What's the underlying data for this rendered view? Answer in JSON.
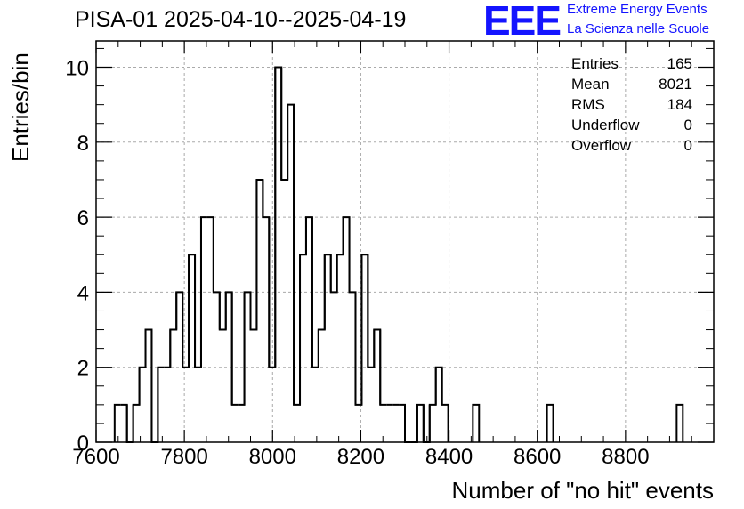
{
  "title": "PISA-01 2025-04-10--2025-04-19",
  "logo": {
    "mark": "EEE",
    "line1": "Extreme Energy Events",
    "line2": "La Scienza nelle Scuole",
    "color": "#1414ff"
  },
  "stats_box": [
    {
      "label": "Entries",
      "value": "165"
    },
    {
      "label": "Mean",
      "value": "8021"
    },
    {
      "label": "RMS",
      "value": "184"
    },
    {
      "label": "Underflow",
      "value": "0"
    },
    {
      "label": "Overflow",
      "value": "0"
    }
  ],
  "chart_data": {
    "type": "bar",
    "title": "PISA-01 2025-04-10--2025-04-19",
    "xlabel": "Number of \"no hit\" events",
    "ylabel": "Entries/bin",
    "xlim": [
      7600,
      9000
    ],
    "ylim": [
      0,
      10.7
    ],
    "grid": true,
    "bin_width": 14,
    "xticks": [
      "7600",
      "7800",
      "8000",
      "8200",
      "8400",
      "8600",
      "8800"
    ],
    "yticks": [
      "0",
      "2",
      "4",
      "6",
      "8",
      "10"
    ],
    "bins": [
      {
        "x": 7642,
        "y": 1
      },
      {
        "x": 7656,
        "y": 1
      },
      {
        "x": 7670,
        "y": 0
      },
      {
        "x": 7684,
        "y": 1
      },
      {
        "x": 7698,
        "y": 2
      },
      {
        "x": 7712,
        "y": 3
      },
      {
        "x": 7726,
        "y": 0
      },
      {
        "x": 7740,
        "y": 2
      },
      {
        "x": 7754,
        "y": 2
      },
      {
        "x": 7768,
        "y": 3
      },
      {
        "x": 7782,
        "y": 4
      },
      {
        "x": 7796,
        "y": 2
      },
      {
        "x": 7810,
        "y": 5
      },
      {
        "x": 7824,
        "y": 2
      },
      {
        "x": 7838,
        "y": 6
      },
      {
        "x": 7852,
        "y": 6
      },
      {
        "x": 7866,
        "y": 4
      },
      {
        "x": 7880,
        "y": 3
      },
      {
        "x": 7894,
        "y": 4
      },
      {
        "x": 7908,
        "y": 1
      },
      {
        "x": 7922,
        "y": 1
      },
      {
        "x": 7936,
        "y": 4
      },
      {
        "x": 7950,
        "y": 3
      },
      {
        "x": 7964,
        "y": 7
      },
      {
        "x": 7978,
        "y": 6
      },
      {
        "x": 7992,
        "y": 2
      },
      {
        "x": 8006,
        "y": 10
      },
      {
        "x": 8020,
        "y": 7
      },
      {
        "x": 8034,
        "y": 9
      },
      {
        "x": 8048,
        "y": 1
      },
      {
        "x": 8062,
        "y": 5
      },
      {
        "x": 8076,
        "y": 6
      },
      {
        "x": 8090,
        "y": 2
      },
      {
        "x": 8104,
        "y": 3
      },
      {
        "x": 8118,
        "y": 5
      },
      {
        "x": 8132,
        "y": 4
      },
      {
        "x": 8146,
        "y": 5
      },
      {
        "x": 8160,
        "y": 6
      },
      {
        "x": 8174,
        "y": 4
      },
      {
        "x": 8188,
        "y": 1
      },
      {
        "x": 8202,
        "y": 5
      },
      {
        "x": 8216,
        "y": 2
      },
      {
        "x": 8230,
        "y": 3
      },
      {
        "x": 8244,
        "y": 1
      },
      {
        "x": 8258,
        "y": 1
      },
      {
        "x": 8272,
        "y": 1
      },
      {
        "x": 8286,
        "y": 1
      },
      {
        "x": 8300,
        "y": 0
      },
      {
        "x": 8314,
        "y": 0
      },
      {
        "x": 8328,
        "y": 1
      },
      {
        "x": 8342,
        "y": 0
      },
      {
        "x": 8356,
        "y": 1
      },
      {
        "x": 8370,
        "y": 2
      },
      {
        "x": 8384,
        "y": 1
      },
      {
        "x": 8454,
        "y": 1
      },
      {
        "x": 8622,
        "y": 1
      },
      {
        "x": 8916,
        "y": 1
      }
    ]
  }
}
